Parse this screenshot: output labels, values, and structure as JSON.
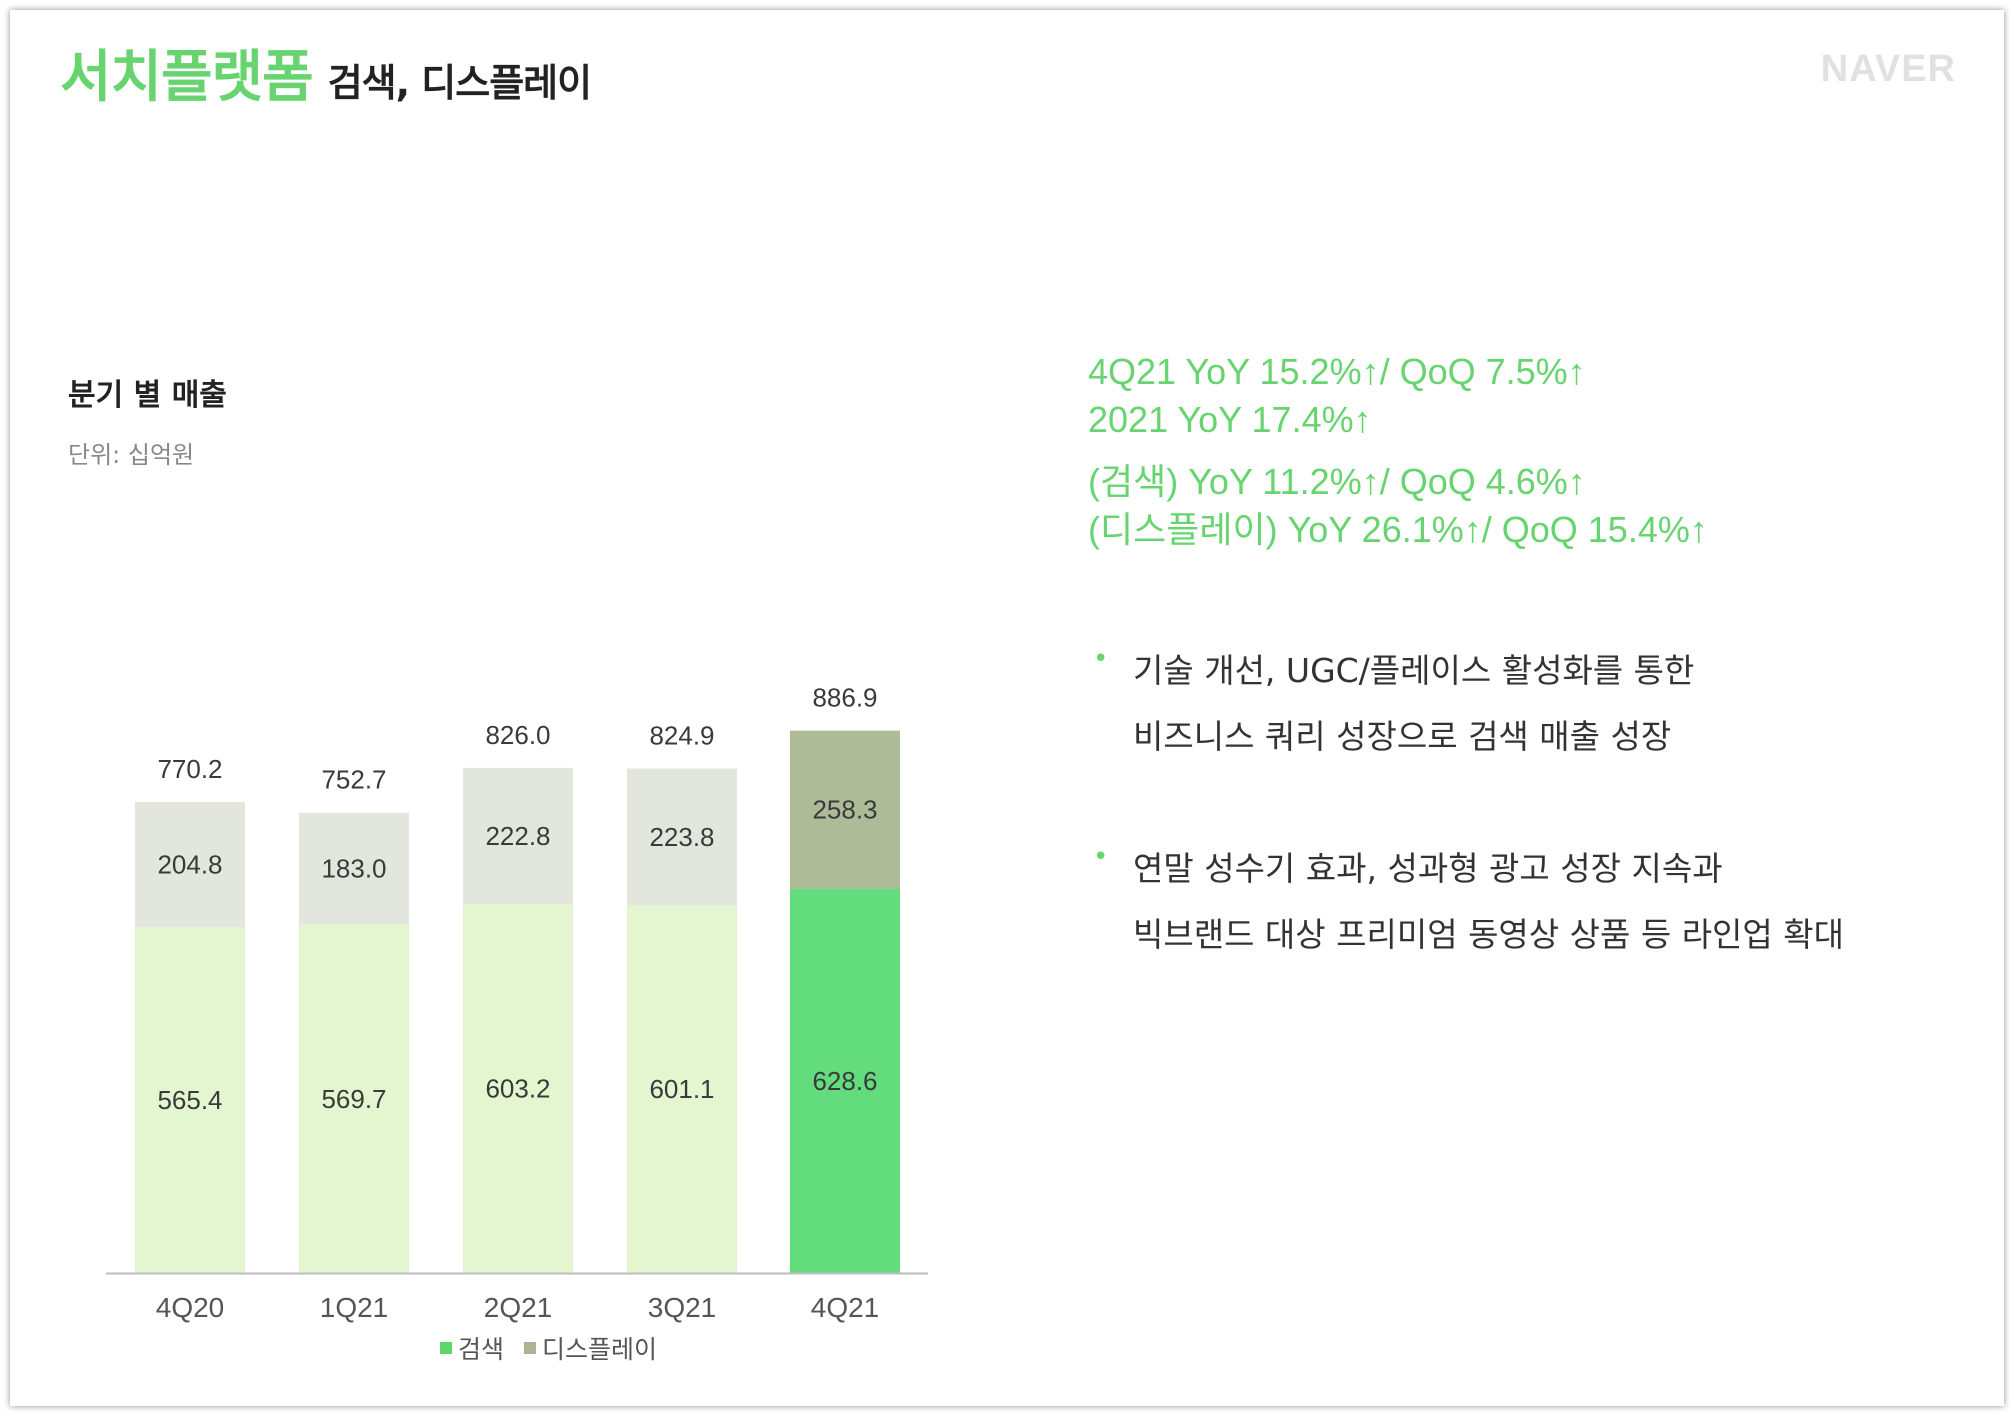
{
  "header": {
    "title_main": "서치플랫폼",
    "title_sub": "검색, 디스플레이",
    "logo": "NAVER"
  },
  "chart_title": "분기 별 매출",
  "chart_unit": "단위: 십억원",
  "colors": {
    "accent": "#67d46f",
    "search": "#e3f6cf",
    "display": "#e3e6dc",
    "search_latest": "#62dc7d",
    "display_latest": "#adbb97",
    "legend_search": "#5cd86a",
    "legend_display": "#a9b691"
  },
  "chart_data": {
    "type": "bar",
    "stacked": true,
    "categories": [
      "4Q20",
      "1Q21",
      "2Q21",
      "3Q21",
      "4Q21"
    ],
    "series": [
      {
        "name": "검색",
        "values": [
          565.4,
          569.7,
          603.2,
          601.1,
          628.6
        ]
      },
      {
        "name": "디스플레이",
        "values": [
          204.8,
          183.0,
          222.8,
          223.8,
          258.3
        ]
      }
    ],
    "totals": [
      770.2,
      752.7,
      826.0,
      824.9,
      886.9
    ],
    "value_labels": {
      "search": [
        "565.4",
        "569.7",
        "603.2",
        "601.1",
        "628.6"
      ],
      "display": [
        "204.8",
        "183.0",
        "222.8",
        "223.8",
        "258.3"
      ],
      "totals": [
        "770.2",
        "752.7",
        "826.0",
        "824.9",
        "886.9"
      ]
    },
    "legend_position": "bottom",
    "highlighted_category": "4Q21"
  },
  "legend": {
    "search": "검색",
    "display": "디스플레이"
  },
  "highlights": [
    "4Q21 YoY 15.2%↑/ QoQ 7.5%↑",
    "2021 YoY 17.4%↑",
    "(검색) YoY 11.2%↑/ QoQ 4.6%↑",
    "(디스플레이) YoY 26.1%↑/ QoQ 15.4%↑"
  ],
  "bullets": [
    {
      "line1": "기술 개선, UGC/플레이스 활성화를 통한",
      "line2": "비즈니스 쿼리 성장으로 검색 매출 성장"
    },
    {
      "line1": "연말 성수기 효과, 성과형 광고 성장 지속과",
      "line2": "빅브랜드 대상 프리미엄 동영상 상품 등 라인업 확대"
    }
  ]
}
